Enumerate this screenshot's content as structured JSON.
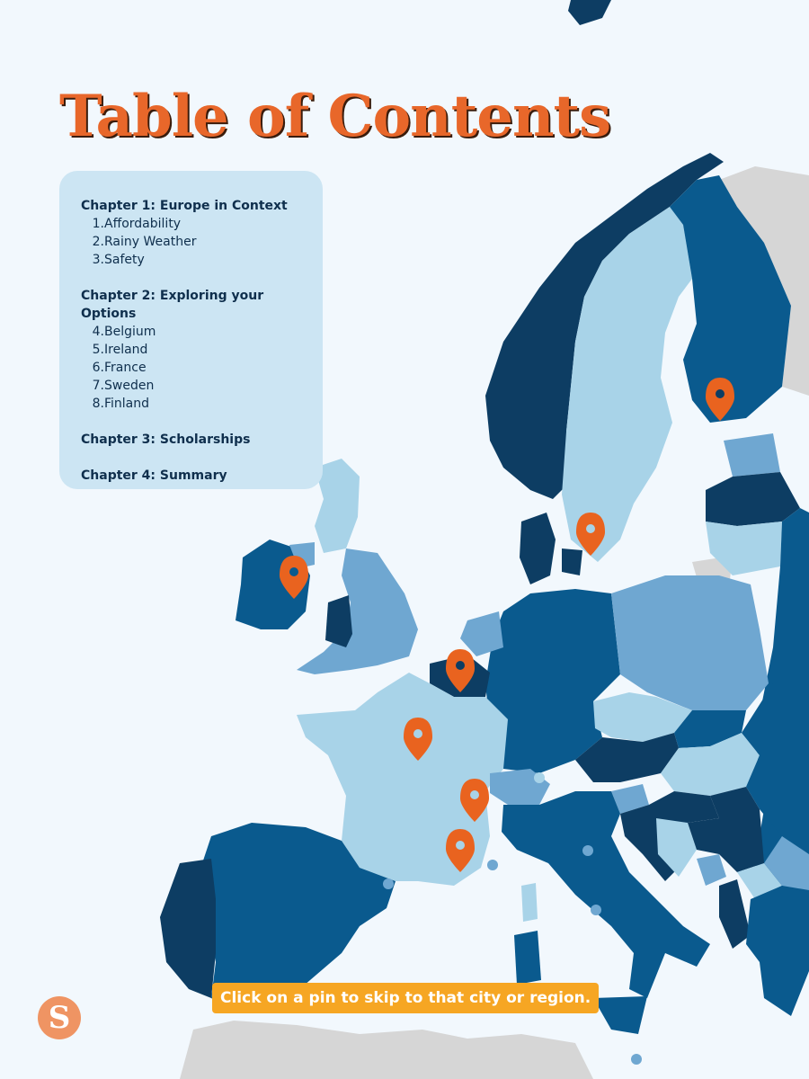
{
  "page": {
    "title": "Table of Contents",
    "cta": "Click on a pin to skip to that city or region."
  },
  "toc": {
    "chapters": [
      {
        "label": "Chapter 1: Europe in Context",
        "items": [
          {
            "num": "1.",
            "text": "Affordability"
          },
          {
            "num": "2.",
            "text": "Rainy Weather"
          },
          {
            "num": "3.",
            "text": "Safety"
          }
        ]
      },
      {
        "label": "Chapter 2: Exploring your Options",
        "items": [
          {
            "num": "4.",
            "text": "Belgium"
          },
          {
            "num": "5.",
            "text": "Ireland"
          },
          {
            "num": "6.",
            "text": "France"
          },
          {
            "num": "7.",
            "text": "Sweden"
          },
          {
            "num": "8.",
            "text": "Finland"
          }
        ]
      },
      {
        "label": "Chapter 3: Scholarships",
        "items": []
      },
      {
        "label": "Chapter 4: Summary",
        "items": []
      }
    ]
  },
  "logo": {
    "letter": "S"
  },
  "map": {
    "pins": [
      "finland",
      "sweden",
      "ireland",
      "belgium",
      "france",
      "south-east-france",
      "south-france"
    ],
    "colors": {
      "sea": "#f2f8fd",
      "darkest": "#0d3d63",
      "dark": "#0a5a8e",
      "medium": "#6fa7d1",
      "light": "#a8d3e8",
      "nonmember": "#d6d6d6",
      "pin": "#e9631f",
      "title": "#e8672a",
      "cta": "#f6a623"
    }
  }
}
